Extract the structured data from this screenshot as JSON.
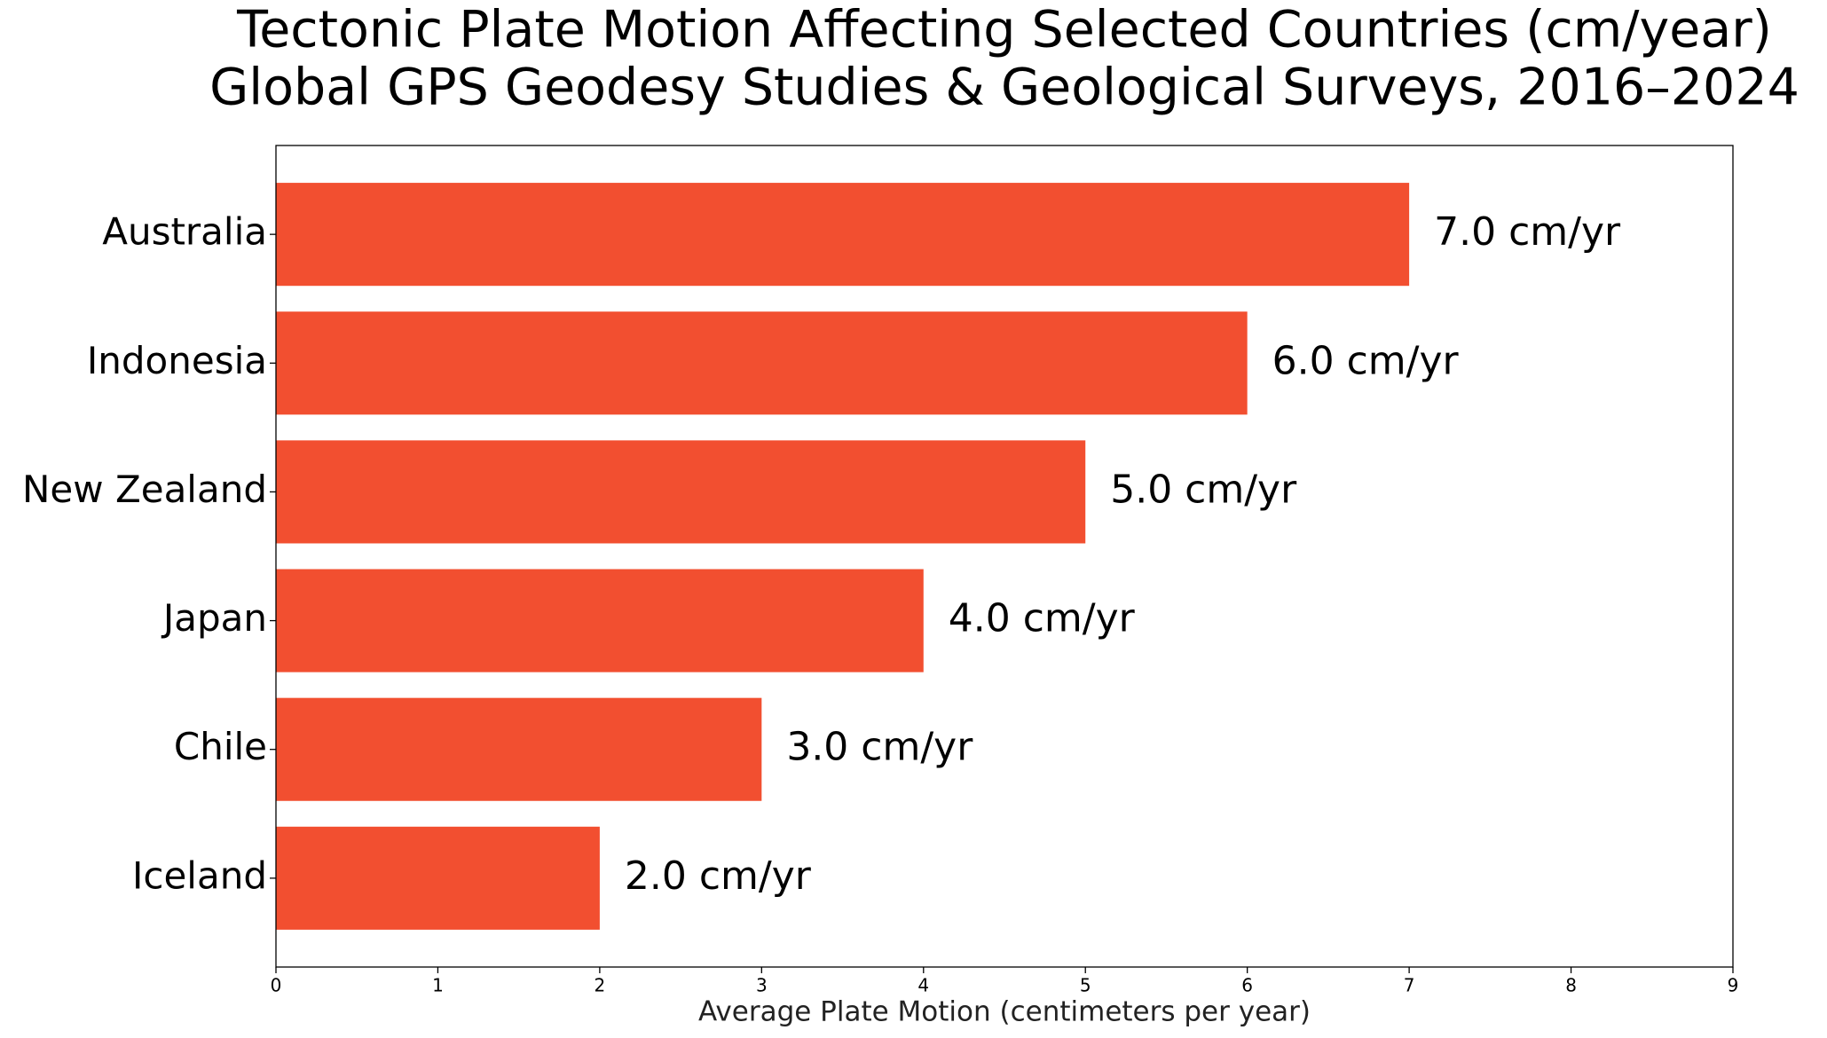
{
  "chart_data": {
    "type": "barh",
    "title": "Tectonic Plate Motion Affecting Selected Countries (cm/year)",
    "subtitle": "Global GPS Geodesy Studies & Geological Surveys, 2016–2024",
    "x_label": "Average Plate Motion (centimeters per year)",
    "categories": [
      "Australia",
      "Indonesia",
      "New Zealand",
      "Japan",
      "Chile",
      "Iceland"
    ],
    "values": [
      7,
      6,
      5,
      4,
      3,
      2
    ],
    "value_labels": [
      "7.0 cm/yr",
      "6.0 cm/yr",
      "5.0 cm/yr",
      "4.0 cm/yr",
      "3.0 cm/yr",
      "2.0 cm/yr"
    ],
    "color": "#f24f30",
    "xlim": [
      0,
      9
    ],
    "xticks": [
      0,
      1,
      2,
      3,
      4,
      5,
      6,
      7,
      8,
      9
    ],
    "grid": false
  }
}
